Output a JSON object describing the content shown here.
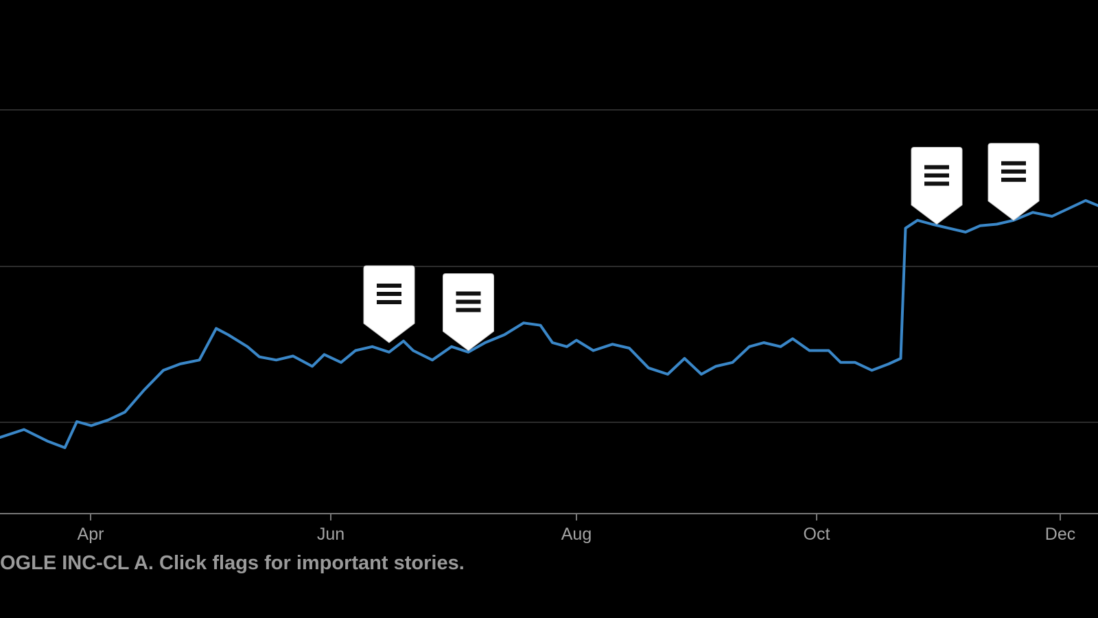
{
  "caption": "OGLE INC-CL A. Click flags for important stories.",
  "colors": {
    "background": "#000000",
    "line": "#3a87c8",
    "grid": "#3a3a3a",
    "axis": "#777777",
    "tick_text": "#a3a3a3",
    "caption_text": "#9a9a9a",
    "flag_fill": "#ffffff",
    "flag_icon": "#111111"
  },
  "chart_data": {
    "type": "line",
    "title": "",
    "xlabel": "",
    "ylabel": "",
    "x_ticks": [
      "Apr",
      "Jun",
      "Aug",
      "Oct",
      "Dec"
    ],
    "grid": "horizontal",
    "y_ticks_visible": false,
    "series": [
      {
        "values": [
          [
            0.0,
            0.0
          ],
          [
            0.1,
            1.0
          ],
          [
            0.2,
            -0.5
          ],
          [
            0.27,
            -1.3
          ],
          [
            0.32,
            2.0
          ],
          [
            0.38,
            1.5
          ],
          [
            0.45,
            2.2
          ],
          [
            0.52,
            3.2
          ],
          [
            0.6,
            6.0
          ],
          [
            0.68,
            8.5
          ],
          [
            0.75,
            9.3
          ],
          [
            0.83,
            9.8
          ],
          [
            0.9,
            13.8
          ],
          [
            0.95,
            13.0
          ],
          [
            1.03,
            11.5
          ],
          [
            1.08,
            10.2
          ],
          [
            1.15,
            9.8
          ],
          [
            1.22,
            10.3
          ],
          [
            1.3,
            9.0
          ],
          [
            1.35,
            10.5
          ],
          [
            1.42,
            9.5
          ],
          [
            1.48,
            11.0
          ],
          [
            1.55,
            11.5
          ],
          [
            1.62,
            10.8
          ],
          [
            1.68,
            12.2
          ],
          [
            1.72,
            11.0
          ],
          [
            1.8,
            9.8
          ],
          [
            1.88,
            11.5
          ],
          [
            1.95,
            10.8
          ],
          [
            2.02,
            12.0
          ],
          [
            2.1,
            13.0
          ],
          [
            2.18,
            14.5
          ],
          [
            2.25,
            14.2
          ],
          [
            2.3,
            12.0
          ],
          [
            2.36,
            11.5
          ],
          [
            2.4,
            12.3
          ],
          [
            2.47,
            11.0
          ],
          [
            2.55,
            11.8
          ],
          [
            2.62,
            11.3
          ],
          [
            2.7,
            8.8
          ],
          [
            2.78,
            8.0
          ],
          [
            2.85,
            10.0
          ],
          [
            2.92,
            8.0
          ],
          [
            2.98,
            9.0
          ],
          [
            3.05,
            9.5
          ],
          [
            3.12,
            11.5
          ],
          [
            3.18,
            12.0
          ],
          [
            3.25,
            11.5
          ],
          [
            3.3,
            12.5
          ],
          [
            3.37,
            11.0
          ],
          [
            3.45,
            11.0
          ],
          [
            3.5,
            9.5
          ],
          [
            3.56,
            9.5
          ],
          [
            3.63,
            8.5
          ],
          [
            3.7,
            9.3
          ],
          [
            3.75,
            10.0
          ],
          [
            3.77,
            26.5
          ],
          [
            3.82,
            27.5
          ],
          [
            3.88,
            27.0
          ],
          [
            3.95,
            26.5
          ],
          [
            4.02,
            26.0
          ],
          [
            4.08,
            26.8
          ],
          [
            4.15,
            27.0
          ],
          [
            4.22,
            27.5
          ],
          [
            4.3,
            28.5
          ],
          [
            4.38,
            28.0
          ],
          [
            4.45,
            29.0
          ],
          [
            4.52,
            30.0
          ],
          [
            4.6,
            29.0
          ],
          [
            4.68,
            31.0
          ],
          [
            4.75,
            33.5
          ],
          [
            4.82,
            34.0
          ],
          [
            4.88,
            34.0
          ],
          [
            4.93,
            35.5
          ],
          [
            5.0,
            35.0
          ]
        ]
      }
    ],
    "note_x_units": "months since Mar 1",
    "flags": [
      {
        "x": 1.62,
        "y": 12.0
      },
      {
        "x": 1.95,
        "y": 11.0
      },
      {
        "x": 3.9,
        "y": 27.0
      },
      {
        "x": 4.22,
        "y": 27.5
      }
    ]
  }
}
